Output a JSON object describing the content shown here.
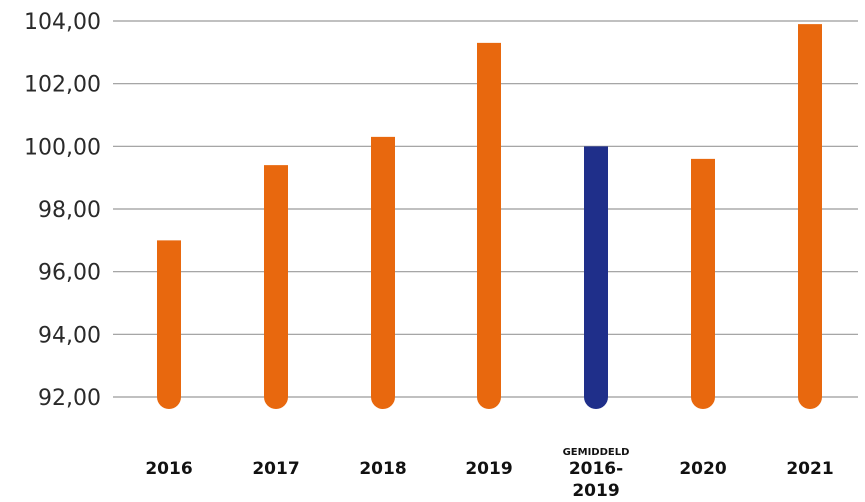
{
  "chart_data": {
    "type": "bar",
    "categories": [
      {
        "label": "2016"
      },
      {
        "label": "2017"
      },
      {
        "label": "2018"
      },
      {
        "label": "2019"
      },
      {
        "sublabel": "GEMIDDELD",
        "label": "2016-",
        "label2": "2019"
      },
      {
        "label": "2020"
      },
      {
        "label": "2021"
      }
    ],
    "values": [
      97.0,
      99.4,
      100.3,
      103.3,
      100.0,
      99.6,
      103.9
    ],
    "colors": [
      "#e8680e",
      "#e8680e",
      "#e8680e",
      "#e8680e",
      "#1f2f8a",
      "#e8680e",
      "#e8680e"
    ],
    "yticks": [
      "104,00",
      "102,00",
      "100,00",
      "98,00",
      "96,00",
      "94,00",
      "92,00"
    ],
    "ylim": [
      92,
      104
    ],
    "grid": true,
    "title": "",
    "xlabel": "",
    "ylabel": ""
  }
}
